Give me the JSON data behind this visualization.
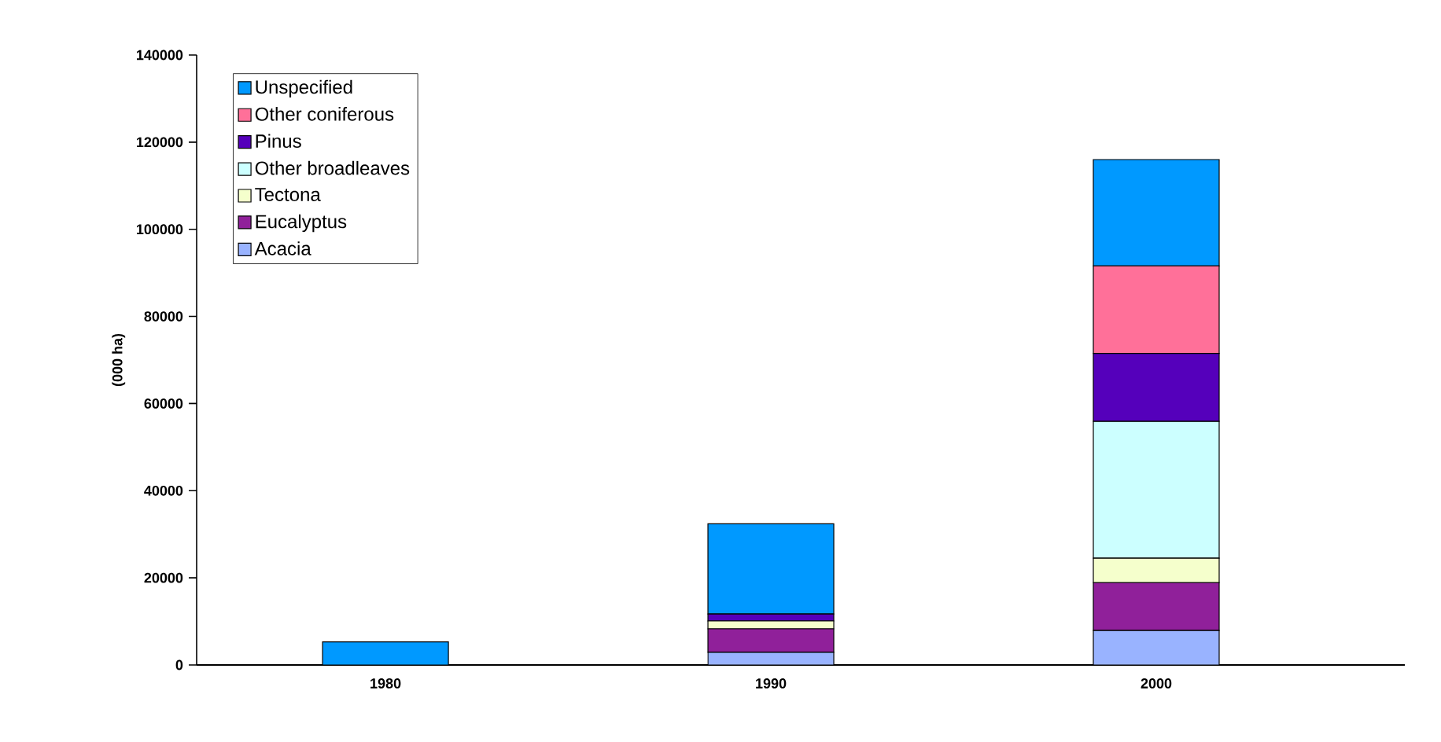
{
  "chart_data": {
    "type": "bar",
    "stacked": true,
    "ylabel": "(000 ha)",
    "categories": [
      "1980",
      "1990",
      "2000"
    ],
    "series": [
      {
        "name": "Acacia",
        "color": "#99b3ff",
        "values": [
          0,
          2900,
          7900
        ]
      },
      {
        "name": "Eucalyptus",
        "color": "#90209a",
        "values": [
          0,
          5400,
          11000
        ]
      },
      {
        "name": "Tectona",
        "color": "#f5ffcc",
        "values": [
          0,
          1800,
          5600
        ]
      },
      {
        "name": "Other broadleaves",
        "color": "#ccffff",
        "values": [
          0,
          0,
          31400
        ]
      },
      {
        "name": "Pinus",
        "color": "#5500bb",
        "values": [
          0,
          1600,
          15600
        ]
      },
      {
        "name": "Other coniferous",
        "color": "#ff7099",
        "values": [
          0,
          0,
          20100
        ]
      },
      {
        "name": "Unspecified",
        "color": "#0099ff",
        "values": [
          5300,
          20700,
          24400
        ]
      }
    ],
    "ylim": [
      0,
      140000
    ],
    "yticks": [
      0,
      20000,
      40000,
      60000,
      80000,
      100000,
      120000,
      140000
    ],
    "grid": false,
    "legend": "top left"
  }
}
